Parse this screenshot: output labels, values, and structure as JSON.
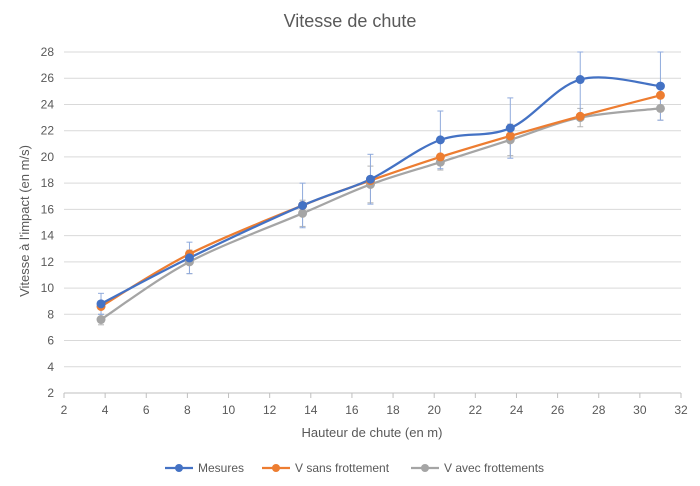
{
  "chart_data": {
    "type": "line",
    "title": "Vitesse de chute",
    "xlabel": "Hauteur de chute (en m)",
    "ylabel": "Vitesse à l'impact (en m/s)",
    "xlim": [
      2,
      32
    ],
    "ylim": [
      2,
      28
    ],
    "x_ticks": [
      2,
      4,
      6,
      8,
      10,
      12,
      14,
      16,
      18,
      20,
      22,
      24,
      26,
      28,
      30,
      32
    ],
    "y_ticks": [
      2,
      4,
      6,
      8,
      10,
      12,
      14,
      16,
      18,
      20,
      22,
      24,
      26,
      28
    ],
    "grid": "horizontal",
    "legend_position": "bottom",
    "series": [
      {
        "name": "Mesures",
        "color": "#4472C4",
        "x": [
          3.8,
          8.1,
          13.6,
          16.9,
          20.3,
          23.7,
          27.1,
          31.0
        ],
        "y": [
          8.8,
          12.3,
          16.3,
          18.3,
          21.3,
          22.2,
          25.9,
          25.4
        ],
        "error": [
          0.8,
          1.2,
          1.7,
          1.9,
          2.2,
          2.3,
          2.6,
          2.6
        ]
      },
      {
        "name": "V sans frottement",
        "color": "#ED7D31",
        "x": [
          3.8,
          8.1,
          13.6,
          16.9,
          20.3,
          23.7,
          27.1,
          31.0
        ],
        "y": [
          8.6,
          12.6,
          16.3,
          18.2,
          20.0,
          21.6,
          23.1,
          24.7
        ]
      },
      {
        "name": "V avec frottements",
        "color": "#A5A5A5",
        "x": [
          3.8,
          8.1,
          13.6,
          16.9,
          20.3,
          23.7,
          27.1,
          31.0
        ],
        "y": [
          7.6,
          12.0,
          15.7,
          17.9,
          19.6,
          21.3,
          23.0,
          23.7
        ],
        "error": [
          0.4,
          0.9,
          1.0,
          1.4,
          0.6,
          1.2,
          0.7,
          0.9
        ]
      }
    ]
  }
}
